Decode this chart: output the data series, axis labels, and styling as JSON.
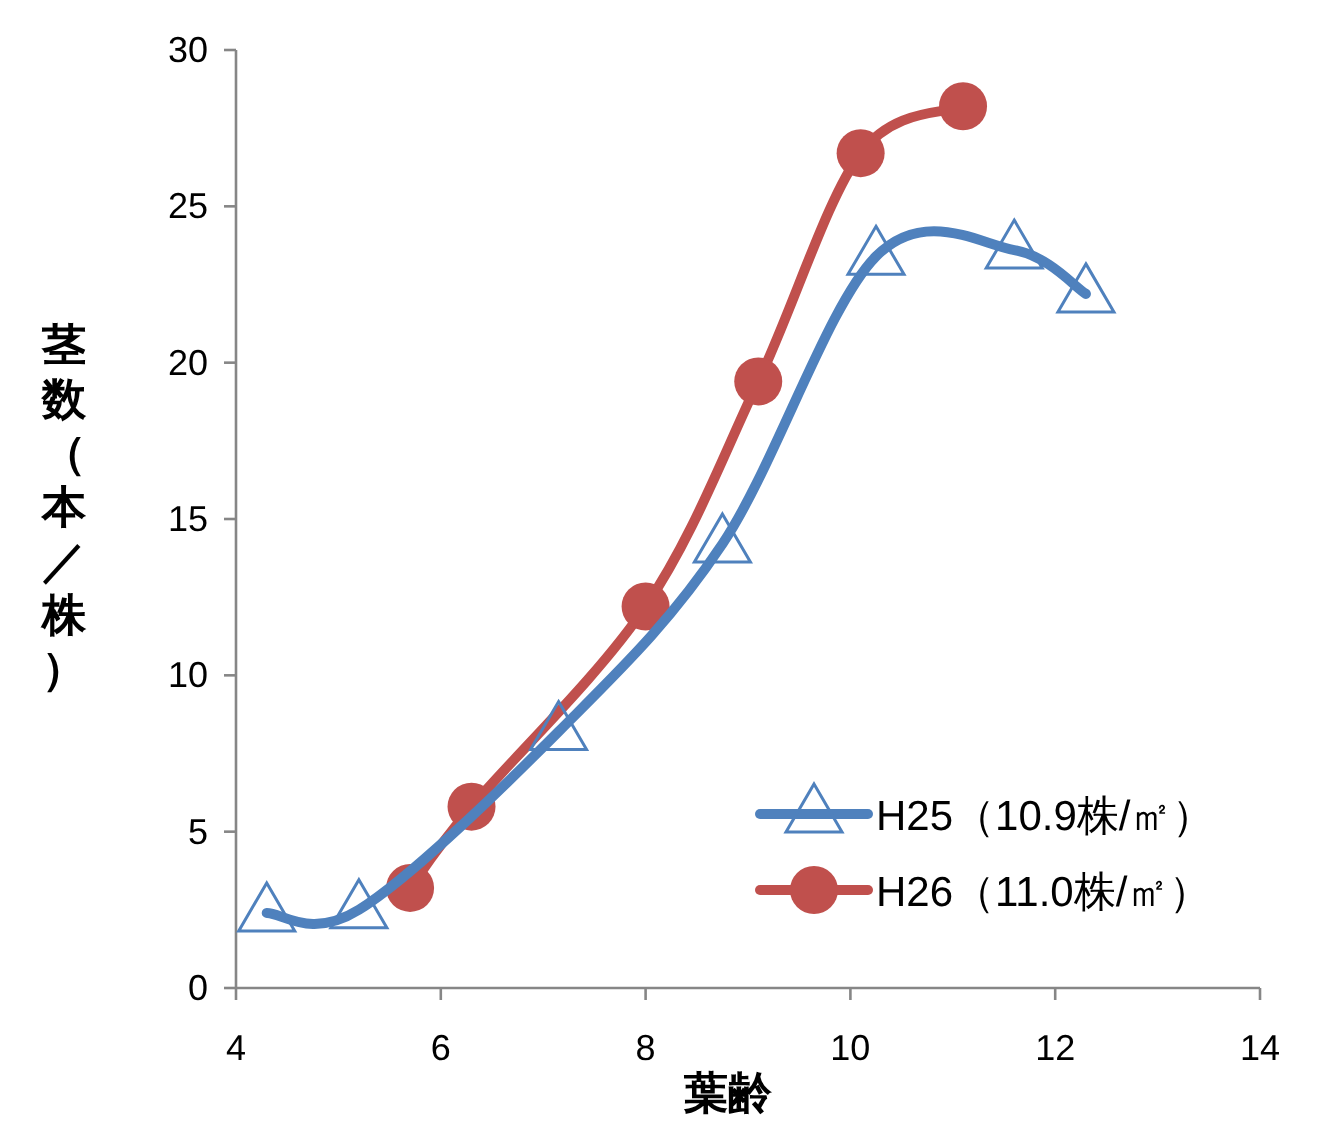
{
  "chart_data": {
    "type": "line",
    "xlabel": "葉齢",
    "ylabel": "茎数（本／株）",
    "xlim": [
      4,
      14
    ],
    "xticks": [
      4,
      6,
      8,
      10,
      12,
      14
    ],
    "ylim": [
      0,
      30
    ],
    "yticks": [
      0,
      5,
      10,
      15,
      20,
      25,
      30
    ],
    "grid": false,
    "legend": "bottom right",
    "line_style": "solid",
    "series": [
      {
        "name": "H25（10.9株/㎡）",
        "color": "#4f81bd",
        "marker": "triangle",
        "x": [
          4.3,
          5.2,
          7.15,
          8.75,
          10.25,
          11.6,
          12.3
        ],
        "values": [
          2.4,
          2.5,
          8.2,
          14.2,
          23.4,
          23.6,
          22.2
        ]
      },
      {
        "name": "H26（11.0株/㎡）",
        "color": "#c0504d",
        "marker": "circle",
        "x": [
          5.7,
          6.3,
          8.0,
          9.1,
          10.1,
          11.1
        ],
        "values": [
          3.2,
          5.8,
          12.2,
          19.4,
          26.7,
          28.2
        ]
      }
    ]
  }
}
